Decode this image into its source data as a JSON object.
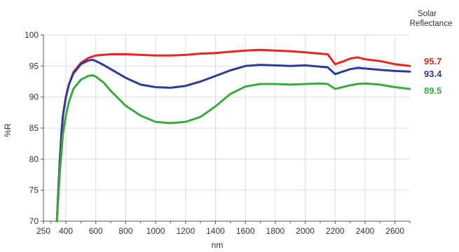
{
  "chart_data": {
    "type": "line",
    "title": "",
    "xlabel": "nm",
    "ylabel": "%R",
    "xlim": [
      250,
      2700
    ],
    "ylim": [
      70,
      100
    ],
    "x_tick_labels": [
      250,
      400,
      600,
      800,
      1000,
      1200,
      1400,
      1600,
      1800,
      2000,
      2200,
      2400,
      2600
    ],
    "y_tick_labels": [
      70,
      75,
      80,
      85,
      90,
      95,
      100
    ],
    "grid": true,
    "legend_title": "Solar Reflectance",
    "series": [
      {
        "value_label": "95.7",
        "color": "#e8261f",
        "x": [
          340,
          350,
          360,
          370,
          380,
          400,
          420,
          450,
          500,
          550,
          600,
          650,
          700,
          800,
          900,
          1000,
          1100,
          1200,
          1300,
          1400,
          1500,
          1600,
          1700,
          1800,
          1900,
          2000,
          2100,
          2150,
          2200,
          2250,
          2300,
          2350,
          2400,
          2500,
          2600,
          2700
        ],
        "y": [
          70,
          75,
          80,
          84,
          87,
          90,
          92,
          94,
          95.5,
          96.3,
          96.7,
          96.8,
          96.9,
          96.9,
          96.8,
          96.7,
          96.7,
          96.8,
          97.0,
          97.1,
          97.3,
          97.5,
          97.6,
          97.5,
          97.4,
          97.2,
          97.0,
          96.9,
          95.3,
          95.7,
          96.2,
          96.4,
          96.1,
          95.8,
          95.3,
          95.0
        ]
      },
      {
        "value_label": "93.4",
        "color": "#2e3a9a",
        "x": [
          340,
          350,
          360,
          370,
          380,
          400,
          420,
          450,
          500,
          550,
          580,
          600,
          650,
          700,
          800,
          900,
          1000,
          1100,
          1200,
          1300,
          1400,
          1500,
          1600,
          1700,
          1800,
          1900,
          2000,
          2100,
          2150,
          2200,
          2250,
          2300,
          2350,
          2400,
          2500,
          2600,
          2700
        ],
        "y": [
          70,
          75,
          80,
          84,
          87,
          90,
          92,
          93.8,
          95.3,
          95.9,
          96.0,
          95.8,
          95.2,
          94.5,
          93.1,
          92.0,
          91.6,
          91.5,
          91.8,
          92.5,
          93.4,
          94.3,
          95.0,
          95.2,
          95.1,
          95.0,
          95.1,
          94.9,
          94.8,
          93.7,
          94.1,
          94.5,
          94.7,
          94.6,
          94.4,
          94.2,
          94.1
        ]
      },
      {
        "value_label": "89.5",
        "color": "#3aaa3a",
        "x": [
          340,
          350,
          360,
          370,
          380,
          400,
          420,
          450,
          500,
          550,
          580,
          600,
          650,
          700,
          750,
          800,
          900,
          1000,
          1100,
          1200,
          1300,
          1400,
          1500,
          1600,
          1700,
          1800,
          1900,
          2000,
          2100,
          2150,
          2200,
          2250,
          2300,
          2350,
          2400,
          2500,
          2600,
          2700
        ],
        "y": [
          70,
          74,
          78,
          81,
          84,
          87,
          89.2,
          91.3,
          92.8,
          93.4,
          93.5,
          93.3,
          92.4,
          91.0,
          89.8,
          88.6,
          87.0,
          86.0,
          85.8,
          86.0,
          86.8,
          88.5,
          90.5,
          91.7,
          92.1,
          92.1,
          92.0,
          92.1,
          92.2,
          92.1,
          91.3,
          91.6,
          91.9,
          92.1,
          92.2,
          92.0,
          91.6,
          91.3
        ]
      }
    ]
  }
}
